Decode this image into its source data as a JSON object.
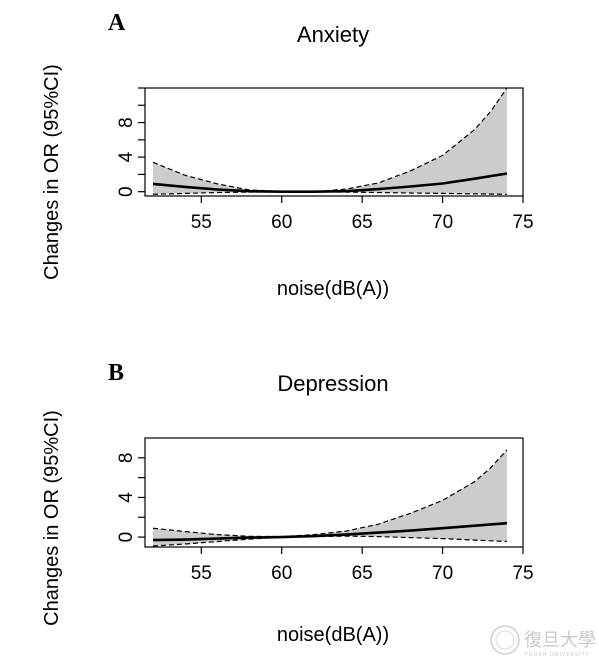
{
  "chart_data": [
    {
      "panel_label": "A",
      "type": "line",
      "title": "Anxiety",
      "xlabel": "noise(dB(A))",
      "ylabel": "Changes in OR (95%CI)",
      "xlim": [
        51.5,
        75
      ],
      "ylim": [
        -0.5,
        12
      ],
      "x_ticks": [
        55,
        60,
        65,
        70,
        75
      ],
      "y_ticks": [
        0,
        4,
        8
      ],
      "y_minor_ticks": [
        2,
        6,
        10,
        12
      ],
      "grid": false,
      "legend": "none",
      "series": [
        {
          "role": "estimate",
          "style": "solid",
          "x": [
            52,
            54,
            56,
            58,
            60,
            62,
            64,
            66,
            68,
            70,
            72,
            74
          ],
          "y": [
            0.9,
            0.55,
            0.25,
            0.05,
            0.0,
            0.0,
            0.05,
            0.3,
            0.6,
            0.95,
            1.5,
            2.1
          ]
        },
        {
          "role": "upper 95% CI",
          "style": "dashed",
          "x": [
            52,
            54,
            56,
            58,
            60,
            62,
            64,
            66,
            68,
            70,
            72,
            73,
            74
          ],
          "y": [
            3.4,
            1.9,
            0.9,
            0.2,
            0.02,
            0.0,
            0.3,
            1.0,
            2.4,
            4.2,
            7.2,
            9.3,
            12.0
          ]
        },
        {
          "role": "lower 95% CI",
          "style": "dashed",
          "x": [
            52,
            54,
            56,
            58,
            60,
            62,
            64,
            66,
            68,
            70,
            72,
            74
          ],
          "y": [
            -0.3,
            -0.2,
            -0.1,
            -0.05,
            0.0,
            0.0,
            -0.05,
            -0.1,
            -0.15,
            -0.2,
            -0.25,
            -0.3
          ]
        }
      ]
    },
    {
      "panel_label": "B",
      "type": "line",
      "title": "Depression",
      "xlabel": "noise(dB(A))",
      "ylabel": "Changes in OR (95%CI)",
      "xlim": [
        51.5,
        75
      ],
      "ylim": [
        -1,
        10
      ],
      "x_ticks": [
        55,
        60,
        65,
        70,
        75
      ],
      "y_ticks": [
        0,
        4,
        8
      ],
      "y_minor_ticks": [
        2,
        6
      ],
      "grid": false,
      "legend": "none",
      "series": [
        {
          "role": "estimate",
          "style": "solid",
          "x": [
            52,
            54,
            56,
            58,
            60,
            62,
            64,
            66,
            68,
            70,
            72,
            74
          ],
          "y": [
            -0.3,
            -0.25,
            -0.15,
            -0.05,
            0.0,
            0.1,
            0.25,
            0.45,
            0.65,
            0.9,
            1.15,
            1.4
          ]
        },
        {
          "role": "upper 95% CI",
          "style": "dashed",
          "x": [
            52,
            54,
            56,
            58,
            60,
            62,
            64,
            66,
            68,
            70,
            72,
            73,
            74
          ],
          "y": [
            0.9,
            0.55,
            0.25,
            0.08,
            0.05,
            0.25,
            0.6,
            1.3,
            2.4,
            3.7,
            5.6,
            7.0,
            8.8
          ]
        },
        {
          "role": "lower 95% CI",
          "style": "dashed",
          "x": [
            52,
            54,
            56,
            58,
            60,
            62,
            64,
            66,
            68,
            70,
            72,
            74
          ],
          "y": [
            -0.9,
            -0.7,
            -0.45,
            -0.2,
            0.0,
            0.05,
            0.1,
            0.05,
            -0.05,
            -0.15,
            -0.3,
            -0.45
          ]
        }
      ]
    }
  ],
  "watermark": {
    "text": "復旦大學",
    "subtext": "FUDAN UNIVERSITY"
  }
}
